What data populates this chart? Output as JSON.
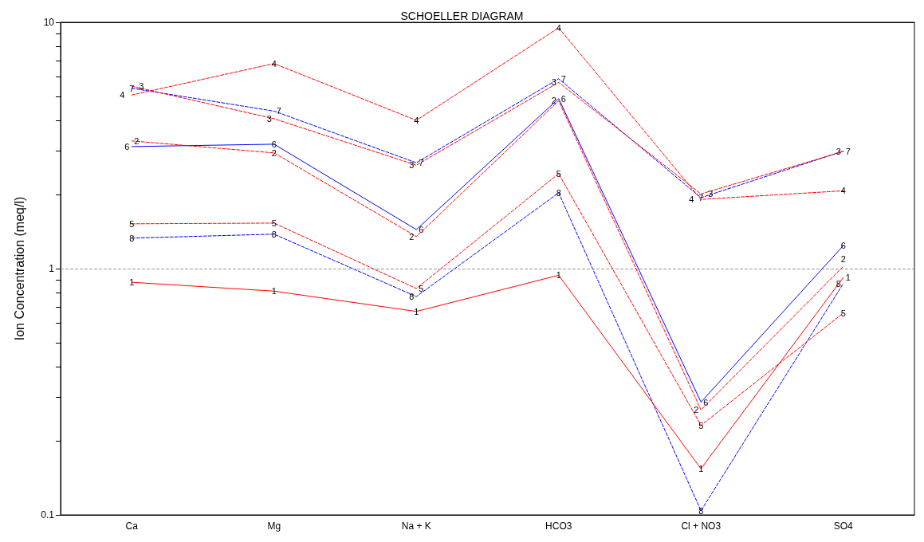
{
  "chart_data": {
    "type": "line",
    "title": "SCHOELLER DIAGRAM",
    "ylabel": "Ion Concentration (meq/l)",
    "categories": [
      "Ca",
      "Mg",
      "Na + K",
      "HCO3",
      "Cl + NO3",
      "SO4"
    ],
    "log": "y",
    "ylim": [
      0.1,
      10
    ],
    "yticks": [
      0.1,
      {
        "value": 0.2,
        "label": null
      },
      {
        "value": 0.3,
        "label": null
      },
      {
        "value": 0.4,
        "label": null
      },
      {
        "value": 0.5,
        "label": null
      },
      {
        "value": 0.6,
        "label": null
      },
      {
        "value": 0.7,
        "label": null
      },
      {
        "value": 0.8,
        "label": null
      },
      {
        "value": 0.9,
        "label": null
      },
      1,
      {
        "value": 2,
        "label": null
      },
      {
        "value": 3,
        "label": null
      },
      {
        "value": 4,
        "label": null
      },
      {
        "value": 5,
        "label": null
      },
      {
        "value": 6,
        "label": null
      },
      {
        "value": 7,
        "label": null
      },
      {
        "value": 8,
        "label": null
      },
      {
        "value": 9,
        "label": null
      },
      10
    ],
    "grid": false,
    "legend": false,
    "marker": "none",
    "ref_lines": [
      {
        "axis": "y",
        "value": 1,
        "color": "#999999",
        "line_style": "dashed"
      }
    ],
    "series": [
      {
        "name": "1",
        "color": "#ff0000",
        "line_style": "solid",
        "values": [
          0.88,
          0.81,
          0.67,
          0.94,
          0.154,
          0.92
        ]
      },
      {
        "name": "2",
        "color": "#ff0000",
        "line_style": "dashed",
        "values": [
          3.3,
          2.95,
          1.35,
          4.8,
          0.267,
          1.02
        ]
      },
      {
        "name": "3",
        "color": "#ff0000",
        "line_style": "dashed",
        "values": [
          5.5,
          4.06,
          2.63,
          5.7,
          2.01,
          2.99
        ]
      },
      {
        "name": "4",
        "color": "#ff0000",
        "line_style": "dashed",
        "values": [
          5.07,
          6.8,
          4.0,
          9.5,
          1.91,
          2.07
        ]
      },
      {
        "name": "5",
        "color": "#ff0000",
        "line_style": "dashed",
        "values": [
          1.52,
          1.53,
          0.83,
          2.43,
          0.231,
          0.66
        ]
      },
      {
        "name": "6",
        "color": "#0000ff",
        "line_style": "solid",
        "values": [
          3.13,
          3.2,
          1.44,
          4.9,
          0.287,
          1.24
        ]
      },
      {
        "name": "7",
        "color": "#0000ff",
        "line_style": "dashed",
        "values": [
          5.4,
          4.36,
          2.69,
          5.9,
          1.94,
          3.0
        ]
      },
      {
        "name": "8",
        "color": "#0000ff",
        "line_style": "dashed",
        "values": [
          1.33,
          1.38,
          0.77,
          2.03,
          0.104,
          0.87
        ]
      }
    ]
  }
}
